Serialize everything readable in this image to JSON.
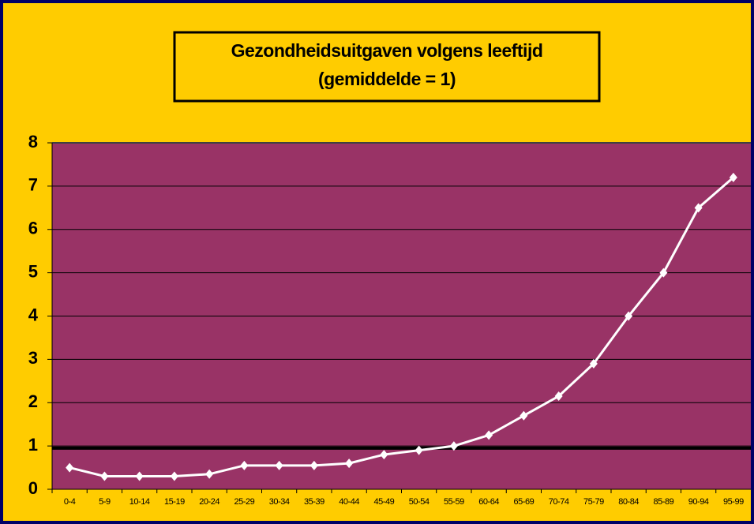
{
  "chart_data": {
    "type": "line",
    "title": [
      "Gezondheidsuitgaven volgens leeftijd",
      "(gemiddelde = 1)"
    ],
    "categories": [
      "0-4",
      "5-9",
      "10-14",
      "15-19",
      "20-24",
      "25-29",
      "30-34",
      "35-39",
      "40-44",
      "45-49",
      "50-54",
      "55-59",
      "60-64",
      "65-69",
      "70-74",
      "75-79",
      "80-84",
      "85-89",
      "90-94",
      "95-99"
    ],
    "series": [
      {
        "color": "#ffffff",
        "values": [
          0.5,
          0.3,
          0.3,
          0.3,
          0.35,
          0.55,
          0.55,
          0.55,
          0.6,
          0.8,
          0.9,
          1.0,
          1.25,
          1.7,
          2.15,
          2.9,
          4.0,
          5.0,
          6.5,
          7.2
        ]
      }
    ],
    "reference_line": 0.95,
    "ylim": [
      0,
      8
    ],
    "yticks": [
      0,
      1,
      2,
      3,
      4,
      5,
      6,
      7,
      8
    ],
    "grid": true,
    "plot_color": "#993366",
    "background_color": "#ffcc00"
  }
}
